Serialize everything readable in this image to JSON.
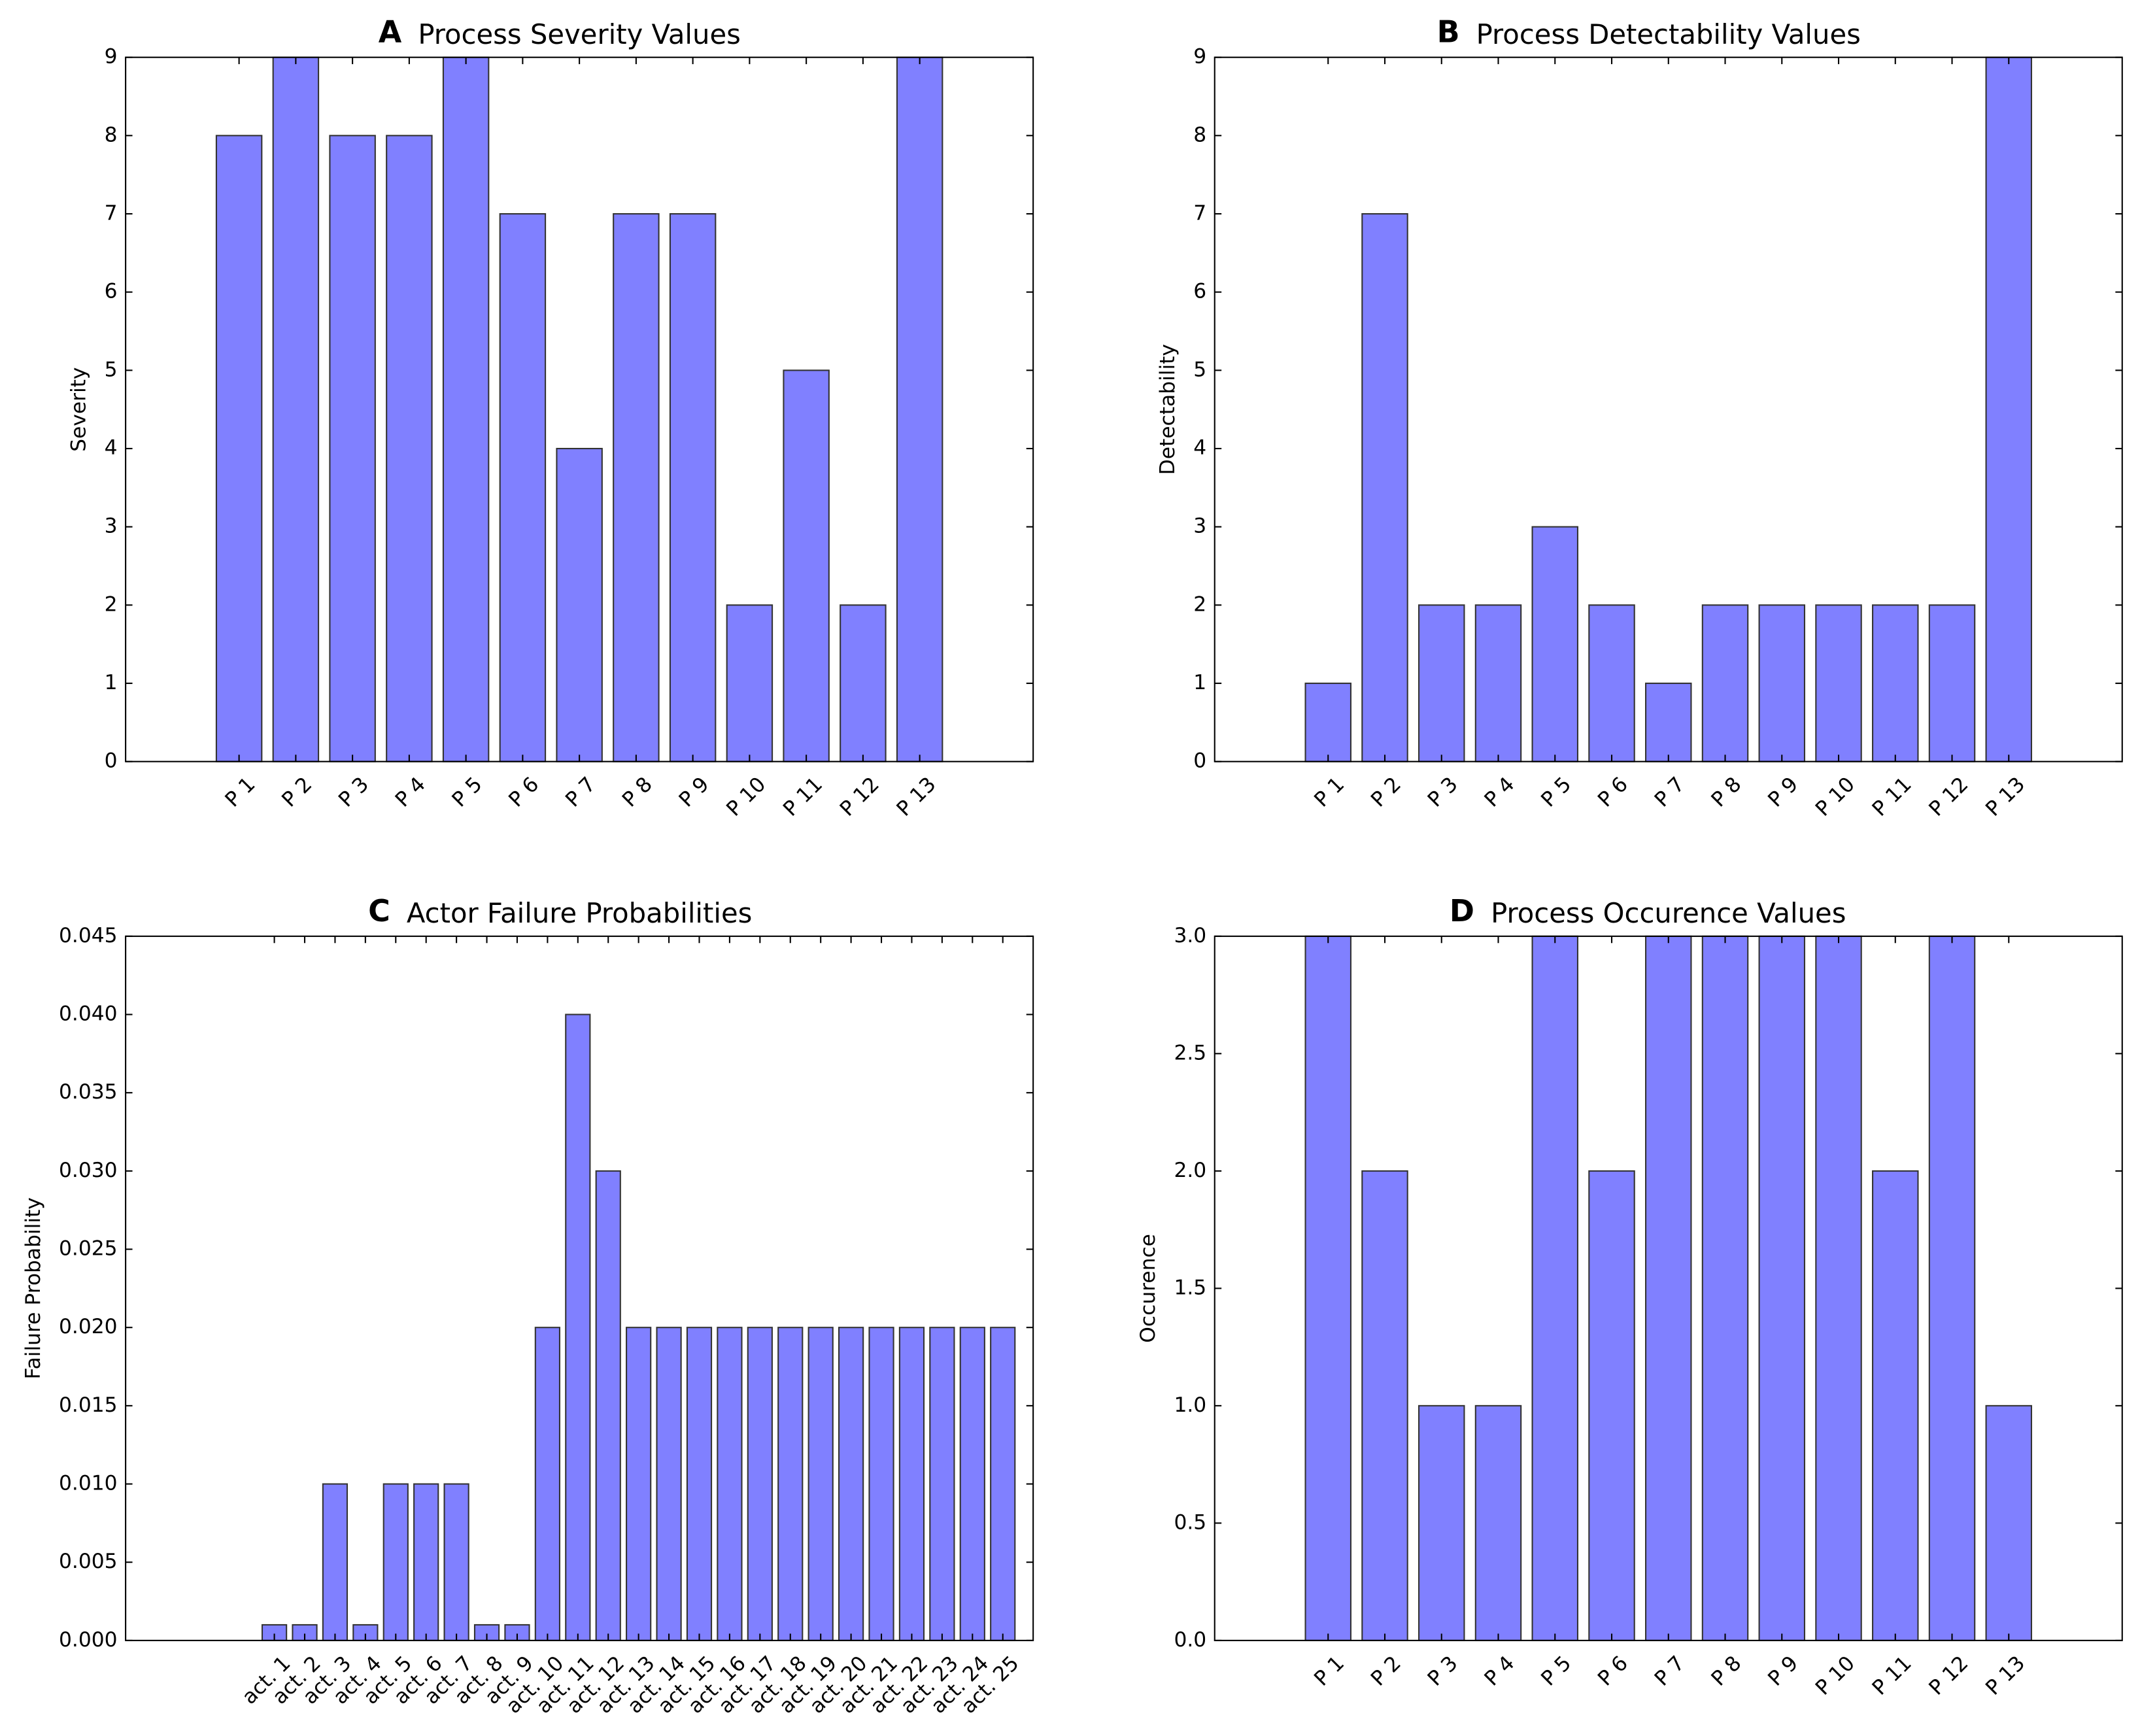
{
  "chart_data": [
    {
      "type": "bar",
      "panel_label": "A",
      "title": "Process Severity Values",
      "ylabel": "Severity",
      "categories": [
        "P 1",
        "P 2",
        "P 3",
        "P 4",
        "P 5",
        "P 6",
        "P 7",
        "P 8",
        "P 9",
        "P 10",
        "P 11",
        "P 12",
        "P 13"
      ],
      "values": [
        8,
        9,
        8,
        8,
        9,
        7,
        4,
        7,
        7,
        2,
        5,
        2,
        9
      ],
      "color": "#8080ff",
      "ylim": [
        0,
        9
      ],
      "yticks": [
        0,
        1,
        2,
        3,
        4,
        5,
        6,
        7,
        8,
        9
      ]
    },
    {
      "type": "bar",
      "panel_label": "B",
      "title": "Process Detectability Values",
      "ylabel": "Detectability",
      "categories": [
        "P 1",
        "P 2",
        "P 3",
        "P 4",
        "P 5",
        "P 6",
        "P 7",
        "P 8",
        "P 9",
        "P 10",
        "P 11",
        "P 12",
        "P 13"
      ],
      "values": [
        1,
        7,
        2,
        2,
        3,
        2,
        1,
        2,
        2,
        2,
        2,
        2,
        9
      ],
      "color": "#8080ff",
      "ylim": [
        0,
        9
      ],
      "yticks": [
        0,
        1,
        2,
        3,
        4,
        5,
        6,
        7,
        8,
        9
      ]
    },
    {
      "type": "bar",
      "panel_label": "C",
      "title": "Actor Failure Probabilities",
      "ylabel": "Failure Probability",
      "categories": [
        "act. 1",
        "act. 2",
        "act. 3",
        "act. 4",
        "act. 5",
        "act. 6",
        "act. 7",
        "act. 8",
        "act. 9",
        "act. 10",
        "act. 11",
        "act. 12",
        "act. 13",
        "act. 14",
        "act. 15",
        "act. 16",
        "act. 17",
        "act. 18",
        "act. 19",
        "act. 20",
        "act. 21",
        "act. 22",
        "act. 23",
        "act. 24",
        "act. 25"
      ],
      "values": [
        0.001,
        0.001,
        0.01,
        0.001,
        0.01,
        0.01,
        0.01,
        0.001,
        0.001,
        0.02,
        0.04,
        0.03,
        0.02,
        0.02,
        0.02,
        0.02,
        0.02,
        0.02,
        0.02,
        0.02,
        0.02,
        0.02,
        0.02,
        0.02,
        0.02
      ],
      "color": "#8080ff",
      "ylim": [
        0,
        0.045
      ],
      "yticks": [
        {
          "value": 0,
          "label": "0.000"
        },
        0.005,
        {
          "value": 0.01,
          "label": "0.010"
        },
        0.015,
        {
          "value": 0.02,
          "label": "0.020"
        },
        0.025,
        {
          "value": 0.03,
          "label": "0.030"
        },
        0.035,
        {
          "value": 0.04,
          "label": "0.040"
        },
        0.045
      ]
    },
    {
      "type": "bar",
      "panel_label": "D",
      "title": "Process Occurence Values",
      "ylabel": "Occurence",
      "categories": [
        "P 1",
        "P 2",
        "P 3",
        "P 4",
        "P 5",
        "P 6",
        "P 7",
        "P 8",
        "P 9",
        "P 10",
        "P 11",
        "P 12",
        "P 13"
      ],
      "values": [
        3,
        2,
        1,
        1,
        3,
        2,
        3,
        3,
        3,
        3,
        2,
        3,
        1
      ],
      "color": "#8080ff",
      "ylim": [
        0,
        3
      ],
      "yticks": [
        {
          "value": 0,
          "label": "0.0"
        },
        0.5,
        {
          "value": 1,
          "label": "1.0"
        },
        1.5,
        {
          "value": 2,
          "label": "2.0"
        },
        2.5,
        {
          "value": 3,
          "label": "3.0"
        }
      ]
    }
  ]
}
